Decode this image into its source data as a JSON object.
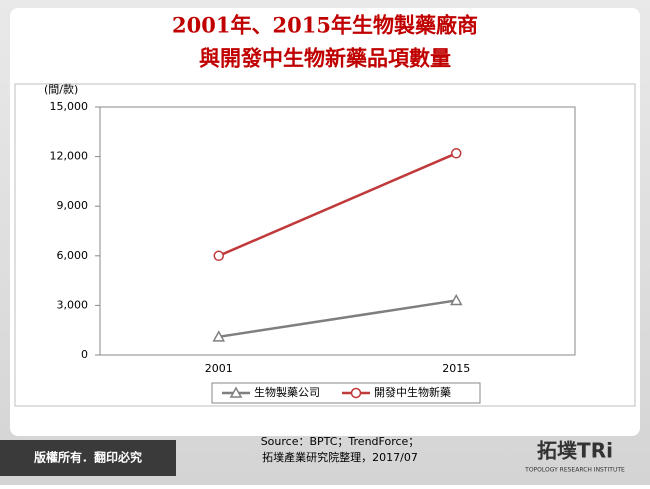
{
  "chart_data": {
    "type": "line",
    "title": [
      "2001年、2015年生物製藥廠商",
      "與開發中生物新藥品項數量"
    ],
    "y_unit": "(間/款)",
    "categories": [
      "2001",
      "2015"
    ],
    "series": [
      {
        "name": "生物製藥公司",
        "color": "#7f7f7f",
        "marker": "triangle",
        "values": [
          1100,
          3300
        ]
      },
      {
        "name": "開發中生物新藥",
        "color": "#c0393b",
        "marker": "circle",
        "values": [
          6000,
          12200
        ]
      }
    ],
    "ylim": [
      0,
      15000
    ],
    "yticks": [
      0,
      {
        "value": 3000,
        "label": "3,000"
      },
      {
        "value": 6000,
        "label": "6,000"
      },
      {
        "value": 9000,
        "label": "9,000"
      },
      {
        "value": 12000,
        "label": "12,000"
      },
      {
        "value": 15000,
        "label": "15,000"
      }
    ],
    "grid": false,
    "legend": "bottom"
  },
  "footer": {
    "copyright": "版權所有．翻印必究",
    "source": [
      "Source：BPTC；TrendForce；",
      "拓墣產業研究院整理，2017/07"
    ],
    "logo": "拓墣TRi",
    "logo_subtitle": "TOPOLOGY RESEARCH INSTITUTE"
  }
}
